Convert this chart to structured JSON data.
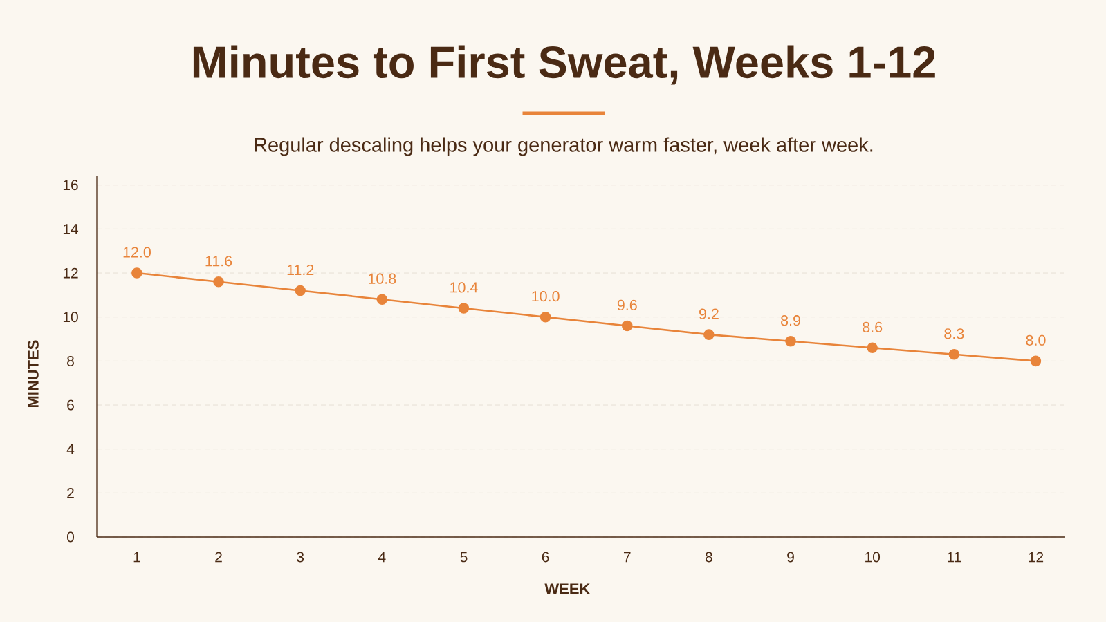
{
  "chart_data": {
    "type": "line",
    "title": "Minutes to First Sweat, Weeks 1-12",
    "subtitle": "Regular descaling helps your generator warm faster, week after week.",
    "xlabel": "WEEK",
    "ylabel": "MINUTES",
    "categories": [
      "1",
      "2",
      "3",
      "4",
      "5",
      "6",
      "7",
      "8",
      "9",
      "10",
      "11",
      "12"
    ],
    "values": [
      12.0,
      11.6,
      11.2,
      10.8,
      10.4,
      10.0,
      9.6,
      9.2,
      8.9,
      8.6,
      8.3,
      8.0
    ],
    "color": "#e8843a",
    "value_labels": [
      "12.0",
      "11.6",
      "11.2",
      "10.8",
      "10.4",
      "10.0",
      "9.6",
      "9.2",
      "8.9",
      "8.6",
      "8.3",
      "8.0"
    ],
    "ylim": [
      0,
      16.4
    ],
    "yticks": [
      0,
      2,
      4,
      6,
      8,
      10,
      12,
      14,
      16
    ],
    "grid": "y",
    "marker": "circle",
    "line_style": "solid"
  }
}
